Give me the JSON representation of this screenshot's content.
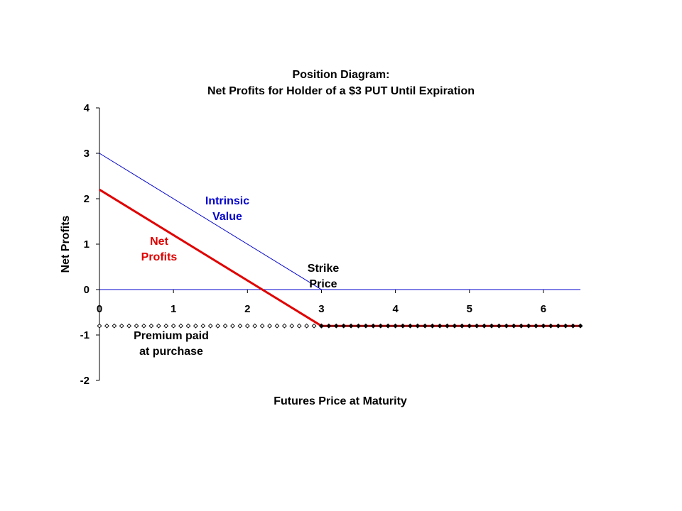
{
  "chart_data": {
    "type": "line",
    "title": [
      "Position Diagram:",
      "Net Profits for Holder of a $3 PUT Until Expiration"
    ],
    "xlabel": "Futures Price at Maturity",
    "ylabel": "Net Profits",
    "xlim": [
      0,
      6.5
    ],
    "ylim": [
      -2,
      4
    ],
    "xticks": [
      0,
      1,
      2,
      3,
      4,
      5,
      6
    ],
    "yticks": [
      4,
      3,
      2,
      1,
      0,
      -1,
      -2
    ],
    "grid": false,
    "legend": "none",
    "series": [
      {
        "key": "intrinsic",
        "color": "#0000cc",
        "marker": "none",
        "x": [
          0,
          3,
          6.5
        ],
        "y": [
          3,
          0,
          0
        ]
      },
      {
        "key": "net_profits",
        "color": "#e00000",
        "marker": "none",
        "x": [
          0,
          3,
          6.5
        ],
        "y": [
          2.2,
          -0.8,
          -0.8
        ]
      },
      {
        "key": "premium_hollow",
        "color": "#000000",
        "marker": "hollow-diamond",
        "x": [
          0,
          0.1,
          0.2,
          0.3,
          0.4,
          0.5,
          0.6,
          0.7,
          0.8,
          0.9,
          1.0,
          1.1,
          1.2,
          1.3,
          1.4,
          1.5,
          1.6,
          1.7,
          1.8,
          1.9,
          2.0,
          2.1,
          2.2,
          2.3,
          2.4,
          2.5,
          2.6,
          2.7,
          2.8,
          2.9,
          3.0
        ],
        "y": -0.8
      },
      {
        "key": "premium_filled",
        "color": "#000000",
        "marker": "filled-diamond",
        "x": [
          3.0,
          3.1,
          3.2,
          3.3,
          3.4,
          3.5,
          3.6,
          3.7,
          3.8,
          3.9,
          4.0,
          4.1,
          4.2,
          4.3,
          4.4,
          4.5,
          4.6,
          4.7,
          4.8,
          4.9,
          5.0,
          5.1,
          5.2,
          5.3,
          5.4,
          5.5,
          5.6,
          5.7,
          5.8,
          5.9,
          6.0,
          6.1,
          6.2,
          6.3,
          6.4,
          6.5
        ],
        "y": -0.8
      }
    ],
    "annotations": {
      "intrinsic": {
        "lines": [
          "Intrinsic",
          "Value"
        ],
        "color": "#0000cc"
      },
      "net": {
        "lines": [
          "Net",
          "Profits"
        ],
        "color": "#e00000"
      },
      "strike": {
        "lines": [
          "Strike",
          "Price"
        ],
        "color": "#000000"
      },
      "premium": {
        "lines": [
          "Premium paid",
          "at purchase"
        ],
        "color": "#000000"
      }
    }
  }
}
